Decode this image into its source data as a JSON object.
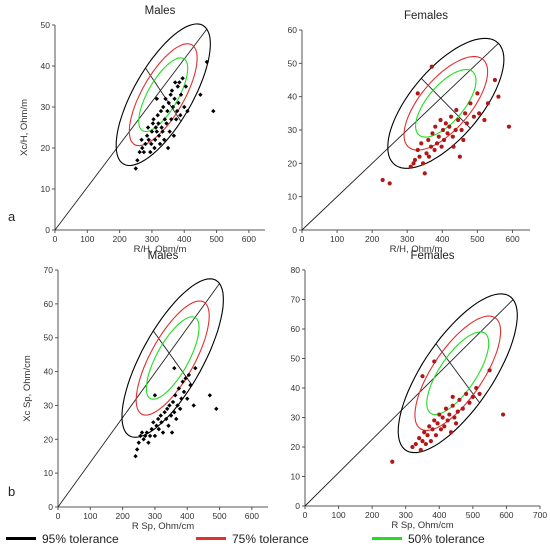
{
  "figure": {
    "row_labels": [
      "a",
      "b"
    ],
    "legend": [
      {
        "label": "95% tolerance",
        "color": "#000000"
      },
      {
        "label": "75% tolerance",
        "color": "#e03030"
      },
      {
        "label": "50% tolerance",
        "color": "#22dd22"
      }
    ]
  },
  "chart_data": [
    {
      "type": "scatter",
      "title": "Males",
      "xlabel": "R/H, Ohm/m",
      "ylabel": "Xc/H, Ohm/m",
      "xlim": [
        0,
        650
      ],
      "ylim": [
        0,
        50
      ],
      "xticks": [
        0,
        100,
        200,
        300,
        400,
        500,
        600
      ],
      "yticks": [
        0,
        10,
        20,
        30,
        40,
        50
      ],
      "point_color": "#000000",
      "ellipse": {
        "center": [
          335,
          33
        ],
        "major_end": [
          470,
          49
        ],
        "minor_end": [
          390,
          26.5
        ]
      },
      "points": [
        [
          250,
          15
        ],
        [
          255,
          17
        ],
        [
          262,
          19
        ],
        [
          268,
          22
        ],
        [
          270,
          20
        ],
        [
          275,
          19
        ],
        [
          280,
          21
        ],
        [
          285,
          23
        ],
        [
          288,
          25
        ],
        [
          290,
          22
        ],
        [
          295,
          19
        ],
        [
          298,
          21
        ],
        [
          300,
          24
        ],
        [
          303,
          26
        ],
        [
          305,
          27
        ],
        [
          308,
          20
        ],
        [
          310,
          22
        ],
        [
          312,
          25
        ],
        [
          315,
          24
        ],
        [
          318,
          28
        ],
        [
          320,
          26
        ],
        [
          322,
          23
        ],
        [
          325,
          21
        ],
        [
          328,
          29
        ],
        [
          330,
          25
        ],
        [
          333,
          24
        ],
        [
          335,
          30
        ],
        [
          338,
          22
        ],
        [
          340,
          27
        ],
        [
          342,
          32
        ],
        [
          345,
          26
        ],
        [
          348,
          29
        ],
        [
          350,
          20
        ],
        [
          352,
          31
        ],
        [
          355,
          24
        ],
        [
          358,
          33
        ],
        [
          360,
          27
        ],
        [
          362,
          34
        ],
        [
          365,
          30
        ],
        [
          368,
          23
        ],
        [
          370,
          32
        ],
        [
          372,
          36
        ],
        [
          375,
          27
        ],
        [
          378,
          29
        ],
        [
          380,
          35
        ],
        [
          382,
          31
        ],
        [
          385,
          36
        ],
        [
          388,
          28
        ],
        [
          390,
          33
        ],
        [
          395,
          37
        ],
        [
          400,
          30
        ],
        [
          405,
          35
        ],
        [
          410,
          29
        ],
        [
          450,
          33
        ],
        [
          470,
          41
        ],
        [
          490,
          29
        ],
        [
          315,
          32
        ]
      ]
    },
    {
      "type": "scatter",
      "title": "Females",
      "xlabel": "R/H, Ohm/m",
      "ylabel": "",
      "xlim": [
        0,
        650
      ],
      "ylim": [
        0,
        60
      ],
      "xticks": [
        0,
        100,
        200,
        300,
        400,
        500,
        600
      ],
      "yticks": [
        0,
        10,
        20,
        30,
        40,
        50,
        60
      ],
      "point_color": "#b01818",
      "ellipse": {
        "center": [
          410,
          38
        ],
        "major_end": [
          560,
          56
        ],
        "minor_end": [
          480,
          30.5
        ]
      },
      "points": [
        [
          230,
          15
        ],
        [
          250,
          14
        ],
        [
          310,
          19
        ],
        [
          318,
          20
        ],
        [
          322,
          21
        ],
        [
          330,
          24
        ],
        [
          335,
          22
        ],
        [
          340,
          26
        ],
        [
          345,
          20
        ],
        [
          350,
          17
        ],
        [
          355,
          23
        ],
        [
          360,
          27
        ],
        [
          362,
          22
        ],
        [
          368,
          25
        ],
        [
          372,
          29
        ],
        [
          378,
          24
        ],
        [
          380,
          31
        ],
        [
          385,
          26
        ],
        [
          390,
          28
        ],
        [
          395,
          33
        ],
        [
          398,
          25
        ],
        [
          402,
          30
        ],
        [
          405,
          27
        ],
        [
          410,
          32
        ],
        [
          415,
          29
        ],
        [
          420,
          31
        ],
        [
          425,
          34
        ],
        [
          430,
          28
        ],
        [
          432,
          25
        ],
        [
          438,
          30
        ],
        [
          440,
          36
        ],
        [
          445,
          33
        ],
        [
          450,
          22
        ],
        [
          455,
          30
        ],
        [
          460,
          27
        ],
        [
          465,
          35
        ],
        [
          470,
          32
        ],
        [
          480,
          38
        ],
        [
          490,
          34
        ],
        [
          500,
          41
        ],
        [
          505,
          35
        ],
        [
          520,
          33
        ],
        [
          530,
          38
        ],
        [
          550,
          45
        ],
        [
          560,
          40
        ],
        [
          590,
          31
        ],
        [
          330,
          41
        ],
        [
          370,
          49
        ]
      ]
    },
    {
      "type": "scatter",
      "title": "Males",
      "xlabel": "R Sp, Ohm/cm",
      "ylabel": "Xc Sp, Ohm/cm",
      "xlim": [
        0,
        650
      ],
      "ylim": [
        0,
        70
      ],
      "xticks": [
        0,
        100,
        200,
        300,
        400,
        500,
        600
      ],
      "yticks": [
        0,
        10,
        20,
        30,
        40,
        50,
        60,
        70
      ],
      "point_color": "#000000",
      "ellipse": {
        "center": [
          355,
          44
        ],
        "major_end": [
          500,
          66
        ],
        "minor_end": [
          415,
          36
        ]
      },
      "points": [
        [
          240,
          15
        ],
        [
          245,
          17
        ],
        [
          250,
          19
        ],
        [
          255,
          21
        ],
        [
          260,
          22
        ],
        [
          265,
          20
        ],
        [
          270,
          21
        ],
        [
          275,
          22
        ],
        [
          280,
          19
        ],
        [
          285,
          21
        ],
        [
          290,
          23
        ],
        [
          295,
          25
        ],
        [
          300,
          21
        ],
        [
          305,
          24
        ],
        [
          310,
          26
        ],
        [
          312,
          23
        ],
        [
          318,
          27
        ],
        [
          320,
          25
        ],
        [
          325,
          22
        ],
        [
          330,
          28
        ],
        [
          335,
          26
        ],
        [
          338,
          29
        ],
        [
          342,
          24
        ],
        [
          345,
          30
        ],
        [
          350,
          27
        ],
        [
          353,
          22
        ],
        [
          356,
          31
        ],
        [
          360,
          28
        ],
        [
          363,
          33
        ],
        [
          366,
          26
        ],
        [
          370,
          30
        ],
        [
          374,
          35
        ],
        [
          378,
          29
        ],
        [
          382,
          32
        ],
        [
          386,
          37
        ],
        [
          390,
          34
        ],
        [
          395,
          38
        ],
        [
          400,
          32
        ],
        [
          405,
          39
        ],
        [
          410,
          36
        ],
        [
          420,
          30
        ],
        [
          425,
          41
        ],
        [
          470,
          33
        ],
        [
          490,
          29
        ],
        [
          360,
          41
        ],
        [
          300,
          33
        ]
      ]
    },
    {
      "type": "scatter",
      "title": "Females",
      "xlabel": "R Sp, Ohm/cm",
      "ylabel": "",
      "xlim": [
        0,
        700
      ],
      "ylim": [
        0,
        80
      ],
      "xticks": [
        0,
        100,
        200,
        300,
        400,
        500,
        600,
        700
      ],
      "yticks": [
        0,
        10,
        20,
        30,
        40,
        50,
        60,
        70,
        80
      ],
      "point_color": "#b01818",
      "ellipse": {
        "center": [
          455,
          45
        ],
        "major_end": [
          620,
          70
        ],
        "minor_end": [
          520,
          35
        ]
      },
      "points": [
        [
          260,
          15
        ],
        [
          320,
          20
        ],
        [
          330,
          21
        ],
        [
          340,
          23
        ],
        [
          345,
          19
        ],
        [
          350,
          22
        ],
        [
          355,
          25
        ],
        [
          360,
          21
        ],
        [
          365,
          24
        ],
        [
          370,
          27
        ],
        [
          375,
          22
        ],
        [
          380,
          26
        ],
        [
          385,
          29
        ],
        [
          390,
          24
        ],
        [
          395,
          28
        ],
        [
          400,
          31
        ],
        [
          405,
          26
        ],
        [
          410,
          30
        ],
        [
          415,
          27
        ],
        [
          420,
          33
        ],
        [
          425,
          29
        ],
        [
          430,
          31
        ],
        [
          435,
          25
        ],
        [
          440,
          34
        ],
        [
          445,
          30
        ],
        [
          450,
          28
        ],
        [
          455,
          32
        ],
        [
          460,
          36
        ],
        [
          470,
          33
        ],
        [
          480,
          38
        ],
        [
          490,
          35
        ],
        [
          500,
          37
        ],
        [
          510,
          40
        ],
        [
          520,
          38
        ],
        [
          550,
          46
        ],
        [
          590,
          31
        ],
        [
          350,
          44
        ],
        [
          385,
          49
        ],
        [
          440,
          37
        ]
      ]
    }
  ]
}
